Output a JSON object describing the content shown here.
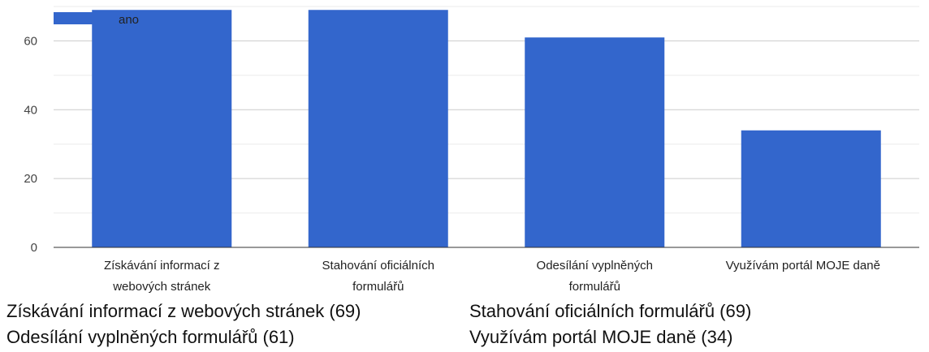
{
  "chart_data": {
    "type": "bar",
    "categories": [
      [
        "Získávání informací z",
        "webových stránek"
      ],
      [
        "Stahování oficiálních",
        "formulářů"
      ],
      [
        "Odesílání vyplněných",
        "formulářů"
      ],
      [
        "Využívám portál MOJE daně"
      ]
    ],
    "series": [
      {
        "name": "ano",
        "values": [
          69,
          69,
          61,
          34
        ],
        "color": "#3366cc"
      }
    ],
    "yticks": [
      "0",
      "20",
      "40",
      "60"
    ],
    "ylim": [
      0,
      70
    ],
    "grid": true,
    "legend": "top-left",
    "title": "",
    "xlabel": "",
    "ylabel": ""
  },
  "summary": [
    "Získávání informací z webových stránek (69)",
    "Stahování oficiálních formulářů (69)",
    "Odesílání vyplněných formulářů (61)",
    "Využívám portál MOJE daně (34)"
  ]
}
